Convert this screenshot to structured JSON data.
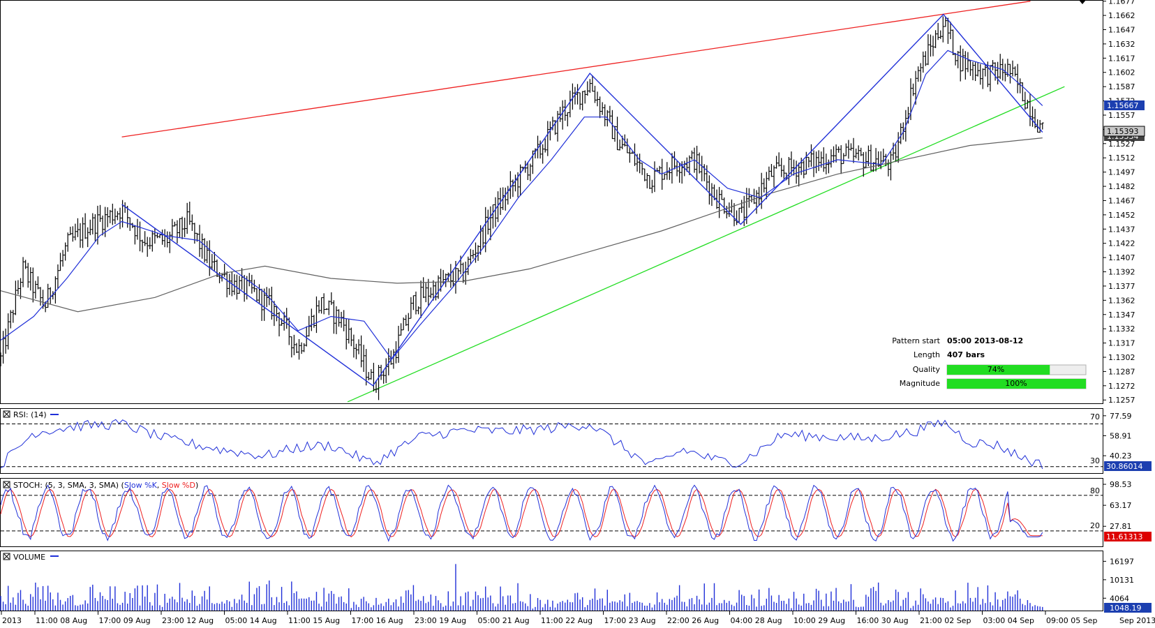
{
  "colors": {
    "price": "#000000",
    "zigzag": "#2030d8",
    "ma_fast": "#2030d8",
    "ma_slow": "#606060",
    "resistance": "#ee2020",
    "support": "#22dd22",
    "rsi": "#2030d8",
    "stoch_k": "#2030d8",
    "stoch_d": "#ee2020",
    "volume": "#2030d8",
    "quality_fill": "#22dd22",
    "badge_blue": "#1c3fb0",
    "badge_red": "#dd0000",
    "badge_gray": "#c8c8c8"
  },
  "price_panel": {
    "y_ticks": [
      "1.1677",
      "1.1662",
      "1.1647",
      "1.1632",
      "1.1617",
      "1.1602",
      "1.1587",
      "1.1572",
      "1.1557",
      "1.1542",
      "1.1527",
      "1.1512",
      "1.1497",
      "1.1482",
      "1.1467",
      "1.1452",
      "1.1437",
      "1.1422",
      "1.1407",
      "1.1392",
      "1.1377",
      "1.1362",
      "1.1347",
      "1.1332",
      "1.1317",
      "1.1302",
      "1.1287",
      "1.1272",
      "1.1257"
    ],
    "ylim": [
      1.12535,
      1.16775
    ],
    "badge_ma": "1.15667",
    "badge_last": "1.15393",
    "badge_slow_ma": "1.15334"
  },
  "info": {
    "pattern_start_label": "Pattern start",
    "pattern_start_value": "05:00 2013-08-12",
    "length_label": "Length",
    "length_value": "407 bars",
    "quality_label": "Quality",
    "quality_text": "74%",
    "quality_pct": 74,
    "magnitude_label": "Magnitude",
    "magnitude_text": "100%",
    "magnitude_pct": 100
  },
  "rsi": {
    "title": "RSI: (14)",
    "levels": [
      70,
      30
    ],
    "level_labels": [
      "70",
      "30"
    ],
    "y_ticks": [
      "77.59",
      "58.91",
      "40.23"
    ],
    "ylim": [
      24,
      84
    ],
    "badge": "30.86014"
  },
  "stoch": {
    "title_prefix": "STOCH: (5, 3, SMA, 3, SMA)",
    "k_label": "Slow %K",
    "d_label": "Slow %D",
    "levels": [
      80,
      20
    ],
    "level_labels": [
      "80",
      "20"
    ],
    "y_ticks": [
      "98.53",
      "63.17",
      "27.81"
    ],
    "ylim": [
      -6,
      108
    ],
    "badge": "11.61313"
  },
  "volume": {
    "title": "VOLUME",
    "y_ticks": [
      "16197",
      "10131",
      "4064"
    ],
    "ylim": [
      0,
      19500
    ],
    "badge": "1048.19"
  },
  "x_axis": {
    "labels": [
      "2013",
      "11:00 08 Aug",
      "17:00 09 Aug",
      "23:00 12 Aug",
      "05:00 14 Aug",
      "11:00 15 Aug",
      "17:00 16 Aug",
      "23:00 19 Aug",
      "05:00 21 Aug",
      "11:00 22 Aug",
      "17:00 23 Aug",
      "22:00 26 Aug",
      "04:00 28 Aug",
      "10:00 29 Aug",
      "16:00 30 Aug",
      "21:00 02 Sep",
      "03:00 04 Sep",
      "09:00 05 Sep"
    ],
    "corner_label": "Sep 2013"
  },
  "chart_data": {
    "type": "candlestick",
    "title": "",
    "pattern": {
      "start": "05:00 2013-08-12",
      "length": "407 bars",
      "quality_pct": 74,
      "magnitude_pct": 100
    },
    "zigzag": [
      {
        "bar": 0.11,
        "price": 1.1463
      },
      {
        "bar": 0.338,
        "price": 1.1272
      },
      {
        "bar": 0.535,
        "price": 1.1601
      },
      {
        "bar": 0.672,
        "price": 1.1442
      },
      {
        "bar": 0.856,
        "price": 1.1663
      },
      {
        "bar": 0.946,
        "price": 1.1539
      }
    ],
    "resistance_line": [
      {
        "bar": 0.11,
        "price": 1.1534
      },
      {
        "bar": 0.935,
        "price": 1.1677
      }
    ],
    "support_line": [
      {
        "bar": 0.315,
        "price": 1.1255
      },
      {
        "bar": 0.966,
        "price": 1.1587
      }
    ],
    "price_path": [
      {
        "bar": 0.0,
        "price": 1.13
      },
      {
        "bar": 0.02,
        "price": 1.1395
      },
      {
        "bar": 0.04,
        "price": 1.1355
      },
      {
        "bar": 0.06,
        "price": 1.142
      },
      {
        "bar": 0.08,
        "price": 1.144
      },
      {
        "bar": 0.11,
        "price": 1.1458
      },
      {
        "bar": 0.13,
        "price": 1.1425
      },
      {
        "bar": 0.15,
        "price": 1.1425
      },
      {
        "bar": 0.17,
        "price": 1.1445
      },
      {
        "bar": 0.19,
        "price": 1.14
      },
      {
        "bar": 0.21,
        "price": 1.138
      },
      {
        "bar": 0.23,
        "price": 1.137
      },
      {
        "bar": 0.25,
        "price": 1.135
      },
      {
        "bar": 0.27,
        "price": 1.131
      },
      {
        "bar": 0.29,
        "price": 1.136
      },
      {
        "bar": 0.31,
        "price": 1.134
      },
      {
        "bar": 0.338,
        "price": 1.1275
      },
      {
        "bar": 0.355,
        "price": 1.13
      },
      {
        "bar": 0.375,
        "price": 1.136
      },
      {
        "bar": 0.4,
        "price": 1.138
      },
      {
        "bar": 0.42,
        "price": 1.139
      },
      {
        "bar": 0.445,
        "price": 1.145
      },
      {
        "bar": 0.47,
        "price": 1.149
      },
      {
        "bar": 0.49,
        "price": 1.152
      },
      {
        "bar": 0.51,
        "price": 1.156
      },
      {
        "bar": 0.535,
        "price": 1.159
      },
      {
        "bar": 0.56,
        "price": 1.153
      },
      {
        "bar": 0.59,
        "price": 1.149
      },
      {
        "bar": 0.61,
        "price": 1.1505
      },
      {
        "bar": 0.63,
        "price": 1.151
      },
      {
        "bar": 0.65,
        "price": 1.147
      },
      {
        "bar": 0.672,
        "price": 1.145
      },
      {
        "bar": 0.7,
        "price": 1.1495
      },
      {
        "bar": 0.73,
        "price": 1.1505
      },
      {
        "bar": 0.76,
        "price": 1.1515
      },
      {
        "bar": 0.79,
        "price": 1.151
      },
      {
        "bar": 0.81,
        "price": 1.1505
      },
      {
        "bar": 0.83,
        "price": 1.1595
      },
      {
        "bar": 0.856,
        "price": 1.1655
      },
      {
        "bar": 0.87,
        "price": 1.1615
      },
      {
        "bar": 0.895,
        "price": 1.16
      },
      {
        "bar": 0.915,
        "price": 1.1605
      },
      {
        "bar": 0.935,
        "price": 1.1565
      },
      {
        "bar": 0.946,
        "price": 1.1539
      }
    ],
    "ma_fast_path": [
      {
        "bar": 0.0,
        "price": 1.132
      },
      {
        "bar": 0.03,
        "price": 1.1345
      },
      {
        "bar": 0.06,
        "price": 1.1385
      },
      {
        "bar": 0.09,
        "price": 1.143
      },
      {
        "bar": 0.11,
        "price": 1.1445
      },
      {
        "bar": 0.15,
        "price": 1.143
      },
      {
        "bar": 0.18,
        "price": 1.1425
      },
      {
        "bar": 0.21,
        "price": 1.1395
      },
      {
        "bar": 0.24,
        "price": 1.137
      },
      {
        "bar": 0.27,
        "price": 1.133
      },
      {
        "bar": 0.3,
        "price": 1.1345
      },
      {
        "bar": 0.33,
        "price": 1.134
      },
      {
        "bar": 0.355,
        "price": 1.13
      },
      {
        "bar": 0.38,
        "price": 1.1335
      },
      {
        "bar": 0.41,
        "price": 1.1375
      },
      {
        "bar": 0.44,
        "price": 1.142
      },
      {
        "bar": 0.47,
        "price": 1.147
      },
      {
        "bar": 0.5,
        "price": 1.151
      },
      {
        "bar": 0.53,
        "price": 1.1555
      },
      {
        "bar": 0.55,
        "price": 1.1555
      },
      {
        "bar": 0.58,
        "price": 1.151
      },
      {
        "bar": 0.6,
        "price": 1.1495
      },
      {
        "bar": 0.63,
        "price": 1.151
      },
      {
        "bar": 0.66,
        "price": 1.148
      },
      {
        "bar": 0.69,
        "price": 1.147
      },
      {
        "bar": 0.72,
        "price": 1.1495
      },
      {
        "bar": 0.76,
        "price": 1.151
      },
      {
        "bar": 0.8,
        "price": 1.1505
      },
      {
        "bar": 0.82,
        "price": 1.154
      },
      {
        "bar": 0.84,
        "price": 1.16
      },
      {
        "bar": 0.86,
        "price": 1.1625
      },
      {
        "bar": 0.88,
        "price": 1.1615
      },
      {
        "bar": 0.91,
        "price": 1.1605
      },
      {
        "bar": 0.93,
        "price": 1.1585
      },
      {
        "bar": 0.946,
        "price": 1.1567
      }
    ],
    "ma_slow_path": [
      {
        "bar": 0.0,
        "price": 1.1372
      },
      {
        "bar": 0.07,
        "price": 1.135
      },
      {
        "bar": 0.14,
        "price": 1.1365
      },
      {
        "bar": 0.2,
        "price": 1.139
      },
      {
        "bar": 0.24,
        "price": 1.1398
      },
      {
        "bar": 0.3,
        "price": 1.1385
      },
      {
        "bar": 0.36,
        "price": 1.138
      },
      {
        "bar": 0.42,
        "price": 1.1382
      },
      {
        "bar": 0.48,
        "price": 1.1395
      },
      {
        "bar": 0.54,
        "price": 1.1415
      },
      {
        "bar": 0.6,
        "price": 1.1435
      },
      {
        "bar": 0.65,
        "price": 1.1455
      },
      {
        "bar": 0.7,
        "price": 1.1475
      },
      {
        "bar": 0.76,
        "price": 1.1495
      },
      {
        "bar": 0.82,
        "price": 1.151
      },
      {
        "bar": 0.88,
        "price": 1.1525
      },
      {
        "bar": 0.946,
        "price": 1.1533
      }
    ],
    "rsi_path": [
      {
        "bar": 0.0,
        "price": 32
      },
      {
        "bar": 0.03,
        "price": 62
      },
      {
        "bar": 0.07,
        "price": 68
      },
      {
        "bar": 0.11,
        "price": 70
      },
      {
        "bar": 0.15,
        "price": 56
      },
      {
        "bar": 0.2,
        "price": 46
      },
      {
        "bar": 0.24,
        "price": 40
      },
      {
        "bar": 0.27,
        "price": 48
      },
      {
        "bar": 0.3,
        "price": 50
      },
      {
        "bar": 0.338,
        "price": 33
      },
      {
        "bar": 0.38,
        "price": 58
      },
      {
        "bar": 0.42,
        "price": 64
      },
      {
        "bar": 0.46,
        "price": 63
      },
      {
        "bar": 0.5,
        "price": 66
      },
      {
        "bar": 0.535,
        "price": 70
      },
      {
        "bar": 0.56,
        "price": 52
      },
      {
        "bar": 0.59,
        "price": 30
      },
      {
        "bar": 0.62,
        "price": 46
      },
      {
        "bar": 0.65,
        "price": 36
      },
      {
        "bar": 0.672,
        "price": 34
      },
      {
        "bar": 0.71,
        "price": 60
      },
      {
        "bar": 0.75,
        "price": 58
      },
      {
        "bar": 0.79,
        "price": 56
      },
      {
        "bar": 0.83,
        "price": 63
      },
      {
        "bar": 0.856,
        "price": 72
      },
      {
        "bar": 0.88,
        "price": 53
      },
      {
        "bar": 0.905,
        "price": 50
      },
      {
        "bar": 0.925,
        "price": 40
      },
      {
        "bar": 0.946,
        "price": 31
      }
    ],
    "volume_hint": {
      "peak": 15300,
      "typical_max": 9000,
      "last": 1048.19
    }
  }
}
